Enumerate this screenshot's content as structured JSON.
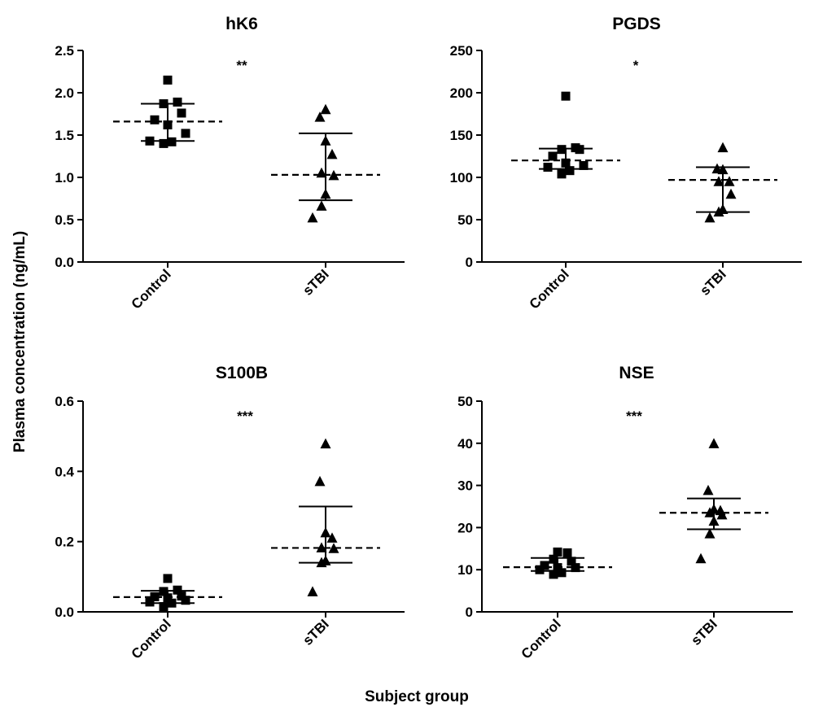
{
  "ylabel": "Plasma concentration (ng/mL)",
  "xlabel": "Subject group",
  "chart_data": [
    {
      "type": "scatter",
      "title": "hK6",
      "significance": "**",
      "categories": [
        "Control",
        "sTBI"
      ],
      "ylim": [
        0,
        2.5
      ],
      "yticks": [
        "0.0",
        "0.5",
        "1.0",
        "1.5",
        "2.0",
        "2.5"
      ],
      "series": [
        {
          "category": "Control",
          "marker": "square",
          "values": [
            2.15,
            1.89,
            1.87,
            1.76,
            1.68,
            1.62,
            1.52,
            1.43,
            1.42,
            1.4
          ],
          "median": 1.66,
          "iqr": [
            1.43,
            1.87
          ]
        },
        {
          "category": "sTBI",
          "marker": "triangle",
          "values": [
            1.8,
            1.71,
            1.43,
            1.27,
            1.05,
            1.02,
            0.8,
            0.66,
            0.52
          ],
          "median": 1.03,
          "iqr": [
            0.73,
            1.52
          ]
        }
      ]
    },
    {
      "type": "scatter",
      "title": "PGDS",
      "significance": "*",
      "categories": [
        "Control",
        "sTBI"
      ],
      "ylim": [
        0,
        250
      ],
      "yticks": [
        "0",
        "50",
        "100",
        "150",
        "200",
        "250"
      ],
      "series": [
        {
          "category": "Control",
          "marker": "square",
          "values": [
            196,
            135,
            133,
            133,
            125,
            117,
            114,
            112,
            108,
            104
          ],
          "median": 120,
          "iqr": [
            110,
            134
          ]
        },
        {
          "category": "sTBI",
          "marker": "triangle",
          "values": [
            135,
            110,
            109,
            95,
            95,
            80,
            62,
            59,
            52
          ],
          "median": 97,
          "iqr": [
            59,
            112
          ]
        }
      ]
    },
    {
      "type": "scatter",
      "title": "S100B",
      "significance": "***",
      "categories": [
        "Control",
        "sTBI"
      ],
      "ylim": [
        0,
        0.6
      ],
      "yticks": [
        "0.0",
        "0.2",
        "0.4",
        "0.6"
      ],
      "series": [
        {
          "category": "Control",
          "marker": "square",
          "values": [
            0.095,
            0.062,
            0.058,
            0.045,
            0.043,
            0.04,
            0.033,
            0.028,
            0.025,
            0.015
          ],
          "median": 0.042,
          "iqr": [
            0.025,
            0.06
          ]
        },
        {
          "category": "sTBI",
          "marker": "triangle",
          "values": [
            0.478,
            0.371,
            0.225,
            0.21,
            0.182,
            0.18,
            0.145,
            0.14,
            0.057
          ],
          "median": 0.182,
          "iqr": [
            0.14,
            0.3
          ]
        }
      ]
    },
    {
      "type": "scatter",
      "title": "NSE",
      "significance": "***",
      "categories": [
        "Control",
        "sTBI"
      ],
      "ylim": [
        0,
        50
      ],
      "yticks": [
        "0",
        "10",
        "20",
        "30",
        "40",
        "50"
      ],
      "series": [
        {
          "category": "Control",
          "marker": "square",
          "values": [
            14.2,
            14.0,
            12.5,
            12.0,
            11.0,
            10.5,
            10.5,
            10.0,
            9.3,
            8.9
          ],
          "median": 10.6,
          "iqr": [
            9.7,
            12.8
          ]
        },
        {
          "category": "sTBI",
          "marker": "triangle",
          "values": [
            39.9,
            28.8,
            24.3,
            24.0,
            23.5,
            23.0,
            21.5,
            18.5,
            12.6
          ],
          "median": 23.5,
          "iqr": [
            19.6,
            26.9
          ]
        }
      ]
    }
  ]
}
